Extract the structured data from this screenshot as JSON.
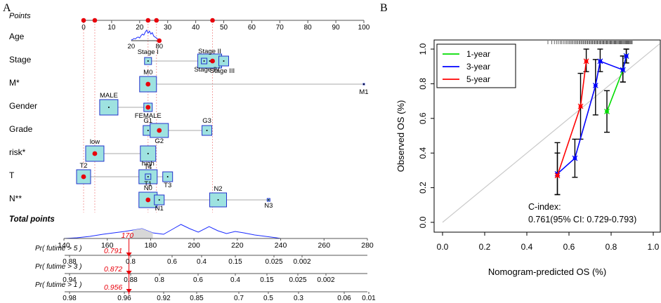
{
  "panel_a_label": "A",
  "panel_b_label": "B",
  "chart_data": [
    {
      "type": "nomogram",
      "title": "",
      "points_axis": {
        "label": "Points",
        "range": [
          0,
          100
        ],
        "ticks": [
          0,
          10,
          20,
          30,
          40,
          50,
          60,
          70,
          80,
          90,
          100
        ],
        "highlighted_points": [
          0,
          4,
          23,
          26,
          46
        ]
      },
      "variables": [
        {
          "name": "Age",
          "axis": {
            "ticks": [
              "20",
              "80"
            ],
            "points": [
              17,
              27
            ]
          },
          "density": "age distribution, peak near 60"
        },
        {
          "name": "Stage",
          "levels": [
            {
              "label": "Stage I",
              "points": 23
            },
            {
              "label": "Stage II",
              "points": 45
            },
            {
              "label": "Stage III",
              "points": 50
            },
            {
              "label": "Stage IV",
              "points": 43
            }
          ],
          "selected_points": 46
        },
        {
          "name": "M*",
          "levels": [
            {
              "label": "M0",
              "points": 23
            },
            {
              "label": "M1",
              "points": 100
            }
          ],
          "selected_points": 23
        },
        {
          "name": "Gender",
          "levels": [
            {
              "label": "MALE",
              "points": 9
            },
            {
              "label": "FEMALE",
              "points": 23
            }
          ],
          "selected_points": 23
        },
        {
          "name": "Grade",
          "levels": [
            {
              "label": "G1",
              "points": 23
            },
            {
              "label": "G2",
              "points": 27
            },
            {
              "label": "G3",
              "points": 44
            }
          ],
          "selected_points": 27
        },
        {
          "name": "risk*",
          "levels": [
            {
              "label": "low",
              "points": 4
            },
            {
              "label": "high",
              "points": 23
            }
          ],
          "selected_points": 4
        },
        {
          "name": "T",
          "levels": [
            {
              "label": "T2",
              "points": 0
            },
            {
              "label": "T4",
              "points": 23
            },
            {
              "label": "T1",
              "points": 23
            },
            {
              "label": "T3",
              "points": 30
            }
          ],
          "selected_points": 0
        },
        {
          "name": "N**",
          "levels": [
            {
              "label": "N0",
              "points": 23
            },
            {
              "label": "N1",
              "points": 27
            },
            {
              "label": "N2",
              "points": 48
            },
            {
              "label": "N3",
              "points": 66
            }
          ],
          "selected_points": 23
        }
      ],
      "total_points": {
        "label": "Total points",
        "range": [
          140,
          280
        ],
        "ticks": [
          140,
          160,
          180,
          200,
          220,
          240,
          260,
          280
        ],
        "value": 170,
        "value_label": "170"
      },
      "probability_scales": [
        {
          "label": "Pr( futime > 5 )",
          "ticks": [
            "0.88",
            "0.8",
            "0.6",
            "0.4",
            "0.15",
            "0.025",
            "0.002"
          ],
          "predicted": "0.791"
        },
        {
          "label": "Pr( futime > 3 )",
          "ticks": [
            "0.94",
            "0.88",
            "0.8",
            "0.6",
            "0.4",
            "0.15",
            "0.025",
            "0.002"
          ],
          "predicted": "0.872"
        },
        {
          "label": "Pr( futime > 1 )",
          "ticks": [
            "0.98",
            "0.96",
            "0.92",
            "0.85",
            "0.7",
            "0.5",
            "0.3",
            "0.06",
            "0.01"
          ],
          "predicted": "0.956"
        }
      ]
    },
    {
      "type": "line",
      "title": "",
      "xlabel": "Nomogram-predicted OS (%)",
      "ylabel": "Observed OS (%)",
      "xlim": [
        0,
        1
      ],
      "ylim": [
        0,
        1
      ],
      "x_ticks": [
        "0.0",
        "0.2",
        "0.4",
        "0.6",
        "0.8",
        "1.0"
      ],
      "y_ticks": [
        "0.0",
        "0.2",
        "0.4",
        "0.6",
        "0.8",
        "1.0"
      ],
      "reference_line": "y = x (ideal calibration)",
      "legend_position": "top-left",
      "series": [
        {
          "name": "1-year",
          "color": "#00dd00",
          "points": [
            {
              "x": 0.78,
              "y": 0.64,
              "lo": 0.52,
              "hi": 0.76
            },
            {
              "x": 0.856,
              "y": 0.88,
              "lo": 0.81,
              "hi": 0.96
            },
            {
              "x": 0.872,
              "y": 0.96,
              "lo": 0.92,
              "hi": 1.0
            }
          ]
        },
        {
          "name": "3-year",
          "color": "#0000ff",
          "points": [
            {
              "x": 0.545,
              "y": 0.28,
              "lo": 0.16,
              "hi": 0.4
            },
            {
              "x": 0.628,
              "y": 0.37,
              "lo": 0.26,
              "hi": 0.48
            },
            {
              "x": 0.726,
              "y": 0.79,
              "lo": 0.62,
              "hi": 0.94
            },
            {
              "x": 0.748,
              "y": 0.93,
              "lo": 0.87,
              "hi": 1.0
            },
            {
              "x": 0.856,
              "y": 0.88,
              "lo": 0.81,
              "hi": 0.96
            },
            {
              "x": 0.872,
              "y": 0.96,
              "lo": 0.92,
              "hi": 1.0
            }
          ]
        },
        {
          "name": "5-year",
          "color": "#ff0000",
          "points": [
            {
              "x": 0.545,
              "y": 0.27,
              "lo": 0.16,
              "hi": 0.46
            },
            {
              "x": 0.655,
              "y": 0.67,
              "lo": 0.48,
              "hi": 0.86
            },
            {
              "x": 0.682,
              "y": 0.93,
              "lo": 0.87,
              "hi": 1.0
            }
          ]
        }
      ],
      "annotation": {
        "line1": "C-index:",
        "line2": "0.761(95% CI: 0.729-0.793)"
      }
    }
  ]
}
